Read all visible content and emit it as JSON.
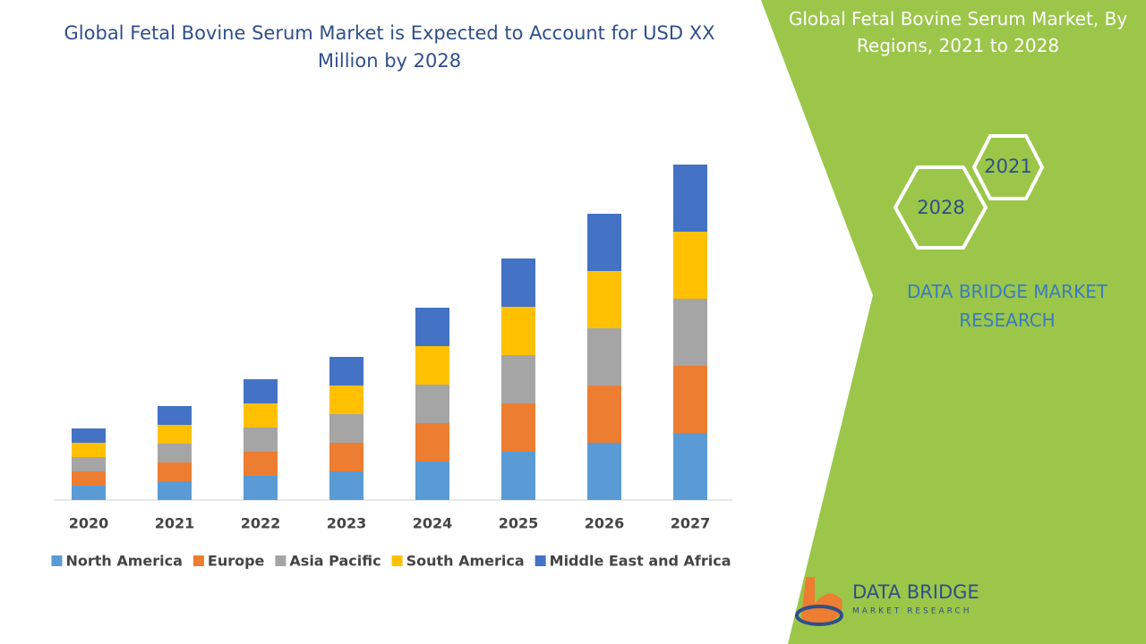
{
  "chart_data": {
    "type": "stacked_bar",
    "title": "Global Fetal Bovine Serum Market is Expected to Account for USD XX Million by 2028",
    "categories": [
      "2020",
      "2021",
      "2022",
      "2023",
      "2024",
      "2025",
      "2026",
      "2027"
    ],
    "series": [
      {
        "name": "North America",
        "color": "#5b9bd5",
        "values": [
          16,
          21,
          27,
          32,
          43,
          54,
          64,
          75
        ]
      },
      {
        "name": "Europe",
        "color": "#ed7d31",
        "values": [
          16,
          21,
          27,
          32,
          43,
          54,
          64,
          75
        ]
      },
      {
        "name": "Asia Pacific",
        "color": "#a5a5a5",
        "values": [
          16,
          21,
          27,
          32,
          43,
          54,
          64,
          75
        ]
      },
      {
        "name": "South America",
        "color": "#ffc000",
        "values": [
          16,
          21,
          27,
          32,
          43,
          54,
          64,
          75
        ]
      },
      {
        "name": "Middle East and Africa",
        "color": "#4472c4",
        "values": [
          16,
          21,
          27,
          32,
          43,
          54,
          64,
          75
        ]
      }
    ],
    "ylim": [
      0,
      500
    ],
    "grid": false,
    "legend": "bottom"
  },
  "panel": {
    "title": "Global Fetal Bovine Serum Market, By Regions, 2021 to 2028",
    "hex_labels": [
      "2021",
      "2028"
    ],
    "brand": "DATA BRIDGE MARKET RESEARCH"
  },
  "logo": {
    "name": "DATA BRIDGE",
    "tagline": "MARKET RESEARCH"
  }
}
